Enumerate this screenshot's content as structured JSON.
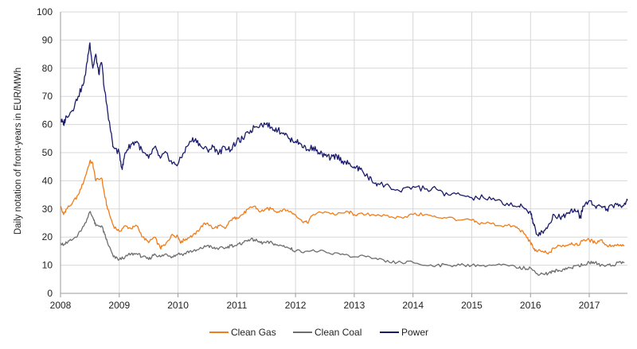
{
  "chart_data": {
    "type": "line",
    "title": "",
    "xlabel": "",
    "ylabel": "Daily notation of front-years in EUR/MWh",
    "xlim": [
      2008.0,
      2017.65
    ],
    "ylim": [
      0,
      100
    ],
    "x_ticks": [
      "2008",
      "2009",
      "2010",
      "2011",
      "2012",
      "2013",
      "2014",
      "2015",
      "2016",
      "2017"
    ],
    "y_ticks": [
      "0",
      "10",
      "20",
      "30",
      "40",
      "50",
      "60",
      "70",
      "80",
      "90",
      "100"
    ],
    "grid": true,
    "legend_position": "bottom-center",
    "series": [
      {
        "name": "Clean Gas",
        "color": "#f07d1a",
        "x": [
          2008.0,
          2008.05,
          2008.1,
          2008.2,
          2008.3,
          2008.4,
          2008.5,
          2008.55,
          2008.6,
          2008.7,
          2008.75,
          2008.8,
          2008.9,
          2009.0,
          2009.1,
          2009.2,
          2009.3,
          2009.4,
          2009.5,
          2009.6,
          2009.7,
          2009.75,
          2009.8,
          2009.9,
          2010.0,
          2010.05,
          2010.1,
          2010.2,
          2010.3,
          2010.4,
          2010.5,
          2010.6,
          2010.7,
          2010.8,
          2010.9,
          2011.0,
          2011.1,
          2011.2,
          2011.3,
          2011.4,
          2011.5,
          2011.6,
          2011.7,
          2011.8,
          2011.9,
          2012.0,
          2012.1,
          2012.2,
          2012.3,
          2012.5,
          2012.7,
          2012.9,
          2013.0,
          2013.2,
          2013.4,
          2013.6,
          2013.8,
          2014.0,
          2014.2,
          2014.4,
          2014.6,
          2014.8,
          2015.0,
          2015.1,
          2015.3,
          2015.5,
          2015.7,
          2015.8,
          2015.9,
          2016.0,
          2016.05,
          2016.1,
          2016.2,
          2016.3,
          2016.4,
          2016.5,
          2016.6,
          2016.7,
          2016.8,
          2016.9,
          2017.0,
          2017.1,
          2017.2,
          2017.3,
          2017.4,
          2017.5,
          2017.6
        ],
        "values": [
          31,
          28,
          30,
          32,
          35,
          40,
          47,
          46,
          40,
          41,
          35,
          30,
          24,
          22,
          24,
          23,
          24,
          20,
          18,
          20,
          16,
          17,
          18,
          21,
          20,
          18,
          19,
          20,
          21,
          24,
          25,
          23,
          24,
          23,
          26,
          27,
          28,
          30,
          31,
          29,
          30,
          30,
          29,
          30,
          29,
          28,
          26,
          25,
          28,
          29,
          28,
          29,
          28,
          28,
          28,
          27,
          27,
          28,
          28,
          27,
          27,
          26,
          26,
          25,
          25,
          24,
          24,
          23,
          21,
          18,
          16,
          15,
          15,
          14,
          16,
          17,
          17,
          18,
          17,
          19,
          19,
          18,
          19,
          17,
          17,
          17,
          17
        ]
      },
      {
        "name": "Clean Coal",
        "color": "#6d6d6d",
        "x": [
          2008.0,
          2008.05,
          2008.1,
          2008.2,
          2008.3,
          2008.4,
          2008.5,
          2008.55,
          2008.6,
          2008.7,
          2008.75,
          2008.8,
          2008.9,
          2009.0,
          2009.1,
          2009.2,
          2009.3,
          2009.4,
          2009.5,
          2009.6,
          2009.7,
          2009.8,
          2009.9,
          2010.0,
          2010.1,
          2010.2,
          2010.3,
          2010.4,
          2010.5,
          2010.6,
          2010.7,
          2010.8,
          2010.9,
          2011.0,
          2011.1,
          2011.2,
          2011.3,
          2011.4,
          2011.5,
          2011.6,
          2011.7,
          2011.8,
          2011.9,
          2012.0,
          2012.2,
          2012.4,
          2012.6,
          2012.8,
          2013.0,
          2013.2,
          2013.4,
          2013.6,
          2013.8,
          2014.0,
          2014.2,
          2014.4,
          2014.6,
          2014.8,
          2015.0,
          2015.2,
          2015.4,
          2015.6,
          2015.8,
          2015.9,
          2016.0,
          2016.1,
          2016.2,
          2016.3,
          2016.4,
          2016.5,
          2016.6,
          2016.7,
          2016.8,
          2016.9,
          2017.0,
          2017.1,
          2017.2,
          2017.3,
          2017.4,
          2017.5,
          2017.6
        ],
        "values": [
          18,
          17,
          18,
          19,
          21,
          24,
          29,
          27,
          24,
          24,
          21,
          18,
          13,
          12,
          13,
          14,
          14,
          13,
          12,
          14,
          13,
          14,
          13,
          14,
          14,
          15,
          15,
          16,
          17,
          16,
          16,
          16,
          17,
          17,
          18,
          19,
          19,
          18,
          18,
          18,
          17,
          17,
          16,
          15,
          15,
          15,
          14,
          14,
          13,
          13,
          12,
          11,
          11,
          11,
          10,
          10,
          10,
          10,
          10,
          10,
          10,
          10,
          9,
          9,
          9,
          7,
          7,
          7,
          8,
          8,
          9,
          9,
          10,
          10,
          11,
          11,
          10,
          10,
          10,
          11,
          11
        ]
      },
      {
        "name": "Power",
        "color": "#1a1a6b",
        "x": [
          2008.0,
          2008.05,
          2008.1,
          2008.2,
          2008.3,
          2008.4,
          2008.45,
          2008.5,
          2008.55,
          2008.6,
          2008.65,
          2008.7,
          2008.75,
          2008.8,
          2008.85,
          2008.9,
          2009.0,
          2009.05,
          2009.1,
          2009.2,
          2009.3,
          2009.4,
          2009.5,
          2009.6,
          2009.7,
          2009.8,
          2009.9,
          2010.0,
          2010.1,
          2010.2,
          2010.3,
          2010.4,
          2010.5,
          2010.6,
          2010.7,
          2010.8,
          2010.9,
          2011.0,
          2011.1,
          2011.2,
          2011.3,
          2011.4,
          2011.5,
          2011.6,
          2011.7,
          2011.8,
          2011.9,
          2012.0,
          2012.1,
          2012.2,
          2012.3,
          2012.4,
          2012.5,
          2012.6,
          2012.7,
          2012.8,
          2012.9,
          2013.0,
          2013.1,
          2013.2,
          2013.3,
          2013.4,
          2013.6,
          2013.8,
          2014.0,
          2014.2,
          2014.4,
          2014.6,
          2014.8,
          2015.0,
          2015.2,
          2015.4,
          2015.6,
          2015.8,
          2015.9,
          2016.0,
          2016.05,
          2016.1,
          2016.2,
          2016.3,
          2016.4,
          2016.5,
          2016.6,
          2016.7,
          2016.8,
          2016.85,
          2016.9,
          2017.0,
          2017.1,
          2017.2,
          2017.3,
          2017.4,
          2017.5,
          2017.6,
          2017.65
        ],
        "values": [
          62,
          60,
          63,
          65,
          70,
          75,
          82,
          89,
          80,
          85,
          78,
          82,
          72,
          65,
          58,
          52,
          50,
          44,
          50,
          53,
          54,
          50,
          48,
          52,
          48,
          50,
          46,
          46,
          50,
          54,
          55,
          52,
          51,
          52,
          50,
          52,
          51,
          54,
          55,
          57,
          59,
          60,
          60,
          59,
          58,
          57,
          55,
          54,
          53,
          51,
          52,
          50,
          49,
          48,
          49,
          47,
          46,
          45,
          44,
          42,
          40,
          39,
          38,
          36,
          38,
          37,
          37,
          35,
          35,
          34,
          34,
          33,
          32,
          31,
          30,
          29,
          25,
          21,
          22,
          24,
          28,
          27,
          28,
          30,
          29,
          27,
          31,
          33,
          31,
          31,
          30,
          31,
          31,
          32,
          33
        ]
      }
    ]
  }
}
